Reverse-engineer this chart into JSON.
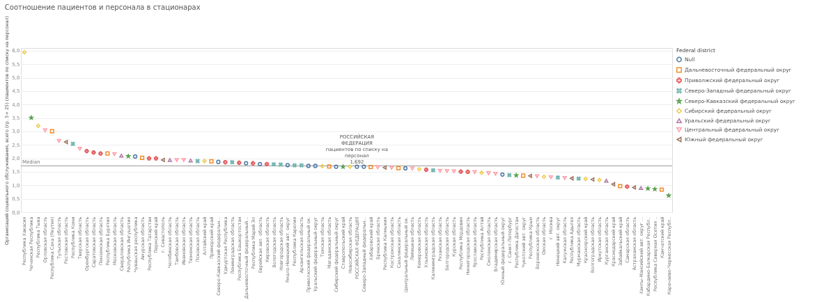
{
  "chart_data": {
    "type": "scatter",
    "title": "Соотношение пациентов и персонала в стационарах",
    "ylabel": "Организаций социального обслуживания, всего (гр. 5+ 25) (пациентов по списку на персонал)",
    "legend_title": "Federal district",
    "categories": [
      "Республика Хакасия",
      "Чеченская Республика",
      "Республика Тыва",
      "Орловская область",
      "Республика Саха (Якутия)",
      "Тульская область",
      "Ростовская область",
      "Республика Коми",
      "Тверская область",
      "Оренбургская область",
      "Саратовская область",
      "Пензенская область",
      "Республика Бурятия",
      "Московская область",
      "Свердловская область",
      "Республика Ингушетия",
      "Чувашская республика",
      "Амурская область",
      "Республика Татарстан",
      "Пермский край",
      "г. Севастополь",
      "Челябинская область",
      "Тамбовская область",
      "Ивановская область",
      "Тюменская область",
      "Псковская область",
      "Алтайский край",
      "Приморский край",
      "Северо-Кавказский федеральн...",
      "Удмуртская Республика",
      "Ленинградская область",
      "Республика Башкортостан",
      "Дальневосточный федеральный...",
      "Республика Марий Эл",
      "Еврейская авт. область",
      "Кировская область",
      "Вологодская область",
      "Новгородская область",
      "Ямало-Ненецкий авт. округ",
      "Республика Карелия",
      "Архангельская область",
      "Приволжский федеральный ок.",
      "Уральский федеральный округ",
      "Томская область",
      "Магаданская область",
      "Сибирский федеральный округ",
      "Ставропольский край",
      "Новосибирская область",
      "РОССИЙСКАЯ ФЕДЕРАЦИЯ",
      "Северо-Западный федеральн...",
      "Хабаровский край",
      "Брянская область",
      "Республика Калмыкия",
      "Костромская область",
      "Сахалинская область",
      "Центральный федеральный ок.",
      "Липецкая область",
      "Кемеровская область",
      "Ульяновская область",
      "Калининградская область",
      "Рязанская область",
      "Белгородская область",
      "Курская область",
      "Республика Мордовия",
      "Нижегородская область",
      "Ярославская область",
      "Республика Алтай",
      "Смоленская область",
      "Владимирская область",
      "Южный федеральный округ",
      "г. Санкт-Петербург",
      "Республика Дагестан",
      "Чукотский авт. округ",
      "Республика Крым",
      "Воронежская область",
      "Омская область",
      "г. Москва",
      "Ненецкий авт. округ",
      "Калужская область",
      "Республика Адыгея",
      "Мурманская область",
      "Красноярский край",
      "Волгоградская область",
      "Иркутская область",
      "Курганская область",
      "Краснодарский край",
      "Забайкальский край",
      "Самарская область",
      "Астраханская область",
      "Ханты-Мансийский авт. округ ...",
      "Кабардино-Балкарская Республ..",
      "Республика Северная Осетия ..",
      "Камчатский край",
      "Карачаево-Черкесская Республ.."
    ],
    "series": [
      {
        "name": "Null",
        "color": "#4e79a7",
        "marker": "circle",
        "x": [
          "Чувашская республика",
          "Северо-Кавказский федеральн...",
          "Дальневосточный федеральный...",
          "Еврейская авт. область",
          "Ямало-Ненецкий авт. округ",
          "Приволжский федеральный ок.",
          "Уральский федеральный округ",
          "Сибирский федеральный округ",
          "РОССИЙСКАЯ ФЕДЕРАЦИЯ",
          "Северо-Западный федеральн...",
          "Центральный федеральный ок.",
          "Южный федеральный округ"
        ],
        "values": [
          2.07,
          1.87,
          1.82,
          1.79,
          1.75,
          1.72,
          1.72,
          1.69,
          1.69,
          1.69,
          1.63,
          1.4
        ]
      },
      {
        "name": "Дальневосточный федеральный округ",
        "color": "#f28e2b",
        "marker": "square",
        "x": [
          "Республика Саха (Якутия)",
          "Республика Бурятия",
          "Амурская область",
          "Приморский край",
          "Магаданская область",
          "Хабаровский край",
          "Сахалинская область",
          "Чукотский авт. округ",
          "Забайкальский край",
          "Камчатский край"
        ],
        "values": [
          3.01,
          2.18,
          2.02,
          1.89,
          1.7,
          1.68,
          1.64,
          1.36,
          0.97,
          0.84
        ]
      },
      {
        "name": "Приволжский федеральный округ",
        "color": "#e15759",
        "marker": "plus",
        "x": [
          "Оренбургская область",
          "Саратовская область",
          "Пензенская область",
          "Республика Татарстан",
          "Пермский край",
          "Удмуртская Республика",
          "Республика Башкортостан",
          "Республика Марий Эл",
          "Кировская область",
          "Ульяновская область",
          "Республика Мордовия",
          "Нижегородская область",
          "Самарская область"
        ],
        "values": [
          2.27,
          2.22,
          2.18,
          2.0,
          2.0,
          1.86,
          1.84,
          1.82,
          1.79,
          1.58,
          1.51,
          1.5,
          0.95
        ]
      },
      {
        "name": "Северо-Западный федеральный округ",
        "color": "#76b7b2",
        "marker": "cross",
        "x": [
          "Республика Коми",
          "Псковская область",
          "Ленинградская область",
          "Вологодская область",
          "Новгородская область",
          "Республика Карелия",
          "Архангельская область",
          "Калининградская область",
          "г. Санкт-Петербург",
          "Ненецкий авт. округ",
          "Мурманская область"
        ],
        "values": [
          2.54,
          1.9,
          1.86,
          1.78,
          1.77,
          1.74,
          1.74,
          1.56,
          1.38,
          1.29,
          1.25
        ]
      },
      {
        "name": "Северо-Кавказский федеральный округ",
        "color": "#59a14f",
        "marker": "star",
        "x": [
          "Чеченская Республика",
          "Республика Ингушетия",
          "Ставропольский край",
          "Республика Дагестан",
          "Кабардино-Балкарская Республ..",
          "Республика Северная Осетия ..",
          "Карачаево-Черкесская Республ.."
        ],
        "values": [
          3.51,
          2.08,
          1.69,
          1.37,
          0.88,
          0.86,
          0.62
        ]
      },
      {
        "name": "Сибирский федеральный округ",
        "color": "#edc948",
        "marker": "diamond",
        "x": [
          "Республика Хакасия",
          "Республика Тыва",
          "Алтайский край",
          "Томская область",
          "Новосибирская область",
          "Кемеровская область",
          "Республика Алтай",
          "Омская область",
          "Красноярский край",
          "Иркутская область"
        ],
        "values": [
          5.94,
          3.21,
          1.9,
          1.71,
          1.69,
          1.6,
          1.47,
          1.32,
          1.24,
          1.2
        ]
      },
      {
        "name": "Уральский федеральный округ",
        "color": "#b07aa1",
        "marker": "triangle",
        "x": [
          "Свердловская область",
          "Челябинская область",
          "Тюменская область",
          "Курганская область",
          "Ханты-Мансийский авт. округ ..."
        ],
        "values": [
          2.1,
          1.94,
          1.92,
          1.17,
          0.9
        ]
      },
      {
        "name": "Центральный федеральный округ",
        "color": "#ff9da7",
        "marker": "triangle-down",
        "x": [
          "Орловская область",
          "Тульская область",
          "Тверская область",
          "Московская область",
          "Тамбовская область",
          "Ивановская область",
          "Брянская область",
          "Костромская область",
          "Липецкая область",
          "Рязанская область",
          "Белгородская область",
          "Курская область",
          "Ярославская область",
          "Смоленская область",
          "Владимирская область",
          "Воронежская область",
          "г. Москва",
          "Калужская область"
        ],
        "values": [
          3.04,
          2.65,
          2.36,
          2.16,
          1.94,
          1.94,
          1.67,
          1.65,
          1.62,
          1.54,
          1.53,
          1.52,
          1.49,
          1.45,
          1.43,
          1.34,
          1.3,
          1.27
        ]
      },
      {
        "name": "Южный федеральный округ",
        "color": "#9c755f",
        "marker": "triangle-left",
        "x": [
          "Ростовская область",
          "г. Севастополь",
          "Республика Калмыкия",
          "Республика Крым",
          "Республика Адыгея",
          "Волгоградская область",
          "Краснодарский край",
          "Астраханская область"
        ],
        "values": [
          2.61,
          1.94,
          1.66,
          1.35,
          1.26,
          1.22,
          1.04,
          0.92
        ]
      }
    ],
    "ylim": [
      0,
      6.1
    ],
    "yticks": [
      {
        "value": 0,
        "label": "0,0"
      },
      {
        "value": 0.5,
        "label": "0,5"
      },
      {
        "value": 1,
        "label": "1,0"
      },
      {
        "value": 1.5,
        "label": "1,5"
      },
      {
        "value": 2,
        "label": "2,0"
      },
      {
        "value": 2.5,
        "label": "2,5"
      },
      {
        "value": 3,
        "label": "3,0"
      },
      {
        "value": 3.5,
        "label": "3,5"
      },
      {
        "value": 4,
        "label": "4,0"
      },
      {
        "value": 4.5,
        "label": "4,5"
      },
      {
        "value": 5,
        "label": "5,0"
      },
      {
        "value": 5.5,
        "label": "5,5"
      },
      {
        "value": 6,
        "label": "6,0"
      }
    ],
    "grid": "y",
    "legend": "top right",
    "ref_lines": [
      {
        "axis": "y",
        "value": 1.72,
        "label": "Median",
        "color": "#aaaaaa"
      }
    ],
    "annotations": [
      {
        "text": "РОССИЙСКАЯ\nФЕДЕРАЦИЯ\nпациентов по списку на\nперсонал\n1,692",
        "x": "РОССИЙСКАЯ ФЕДЕРАЦИЯ",
        "y": 1.69
      }
    ]
  }
}
